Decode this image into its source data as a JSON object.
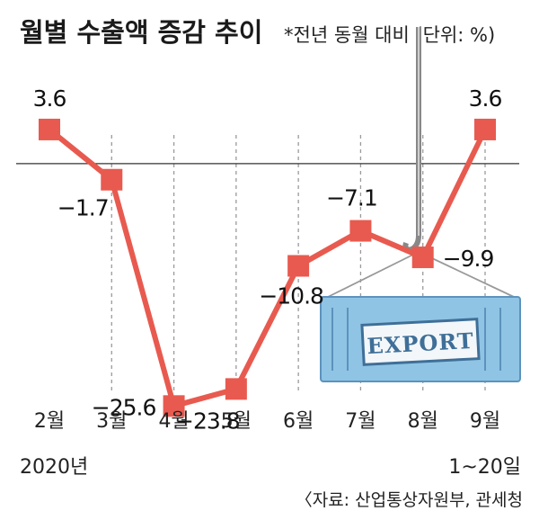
{
  "chart_data": {
    "type": "line",
    "title": "월별 수출액 증감 추이",
    "subtitle": "*전년 동월 대비 (단위: %)",
    "categories": [
      "2월",
      "3월",
      "4월",
      "5월",
      "6월",
      "7월",
      "8월",
      "9월"
    ],
    "values": [
      3.6,
      -1.7,
      -25.6,
      -23.8,
      -10.8,
      -7.1,
      -9.9,
      3.6
    ],
    "data_labels": [
      "3.6",
      "−1.7",
      "−25.6",
      "−23.8",
      "−10.8",
      "−7.1",
      "−9.9",
      "3.6"
    ],
    "tick_sublabels": {
      "first": "2020년",
      "last": "1~20일"
    },
    "ylim": [
      -28.8,
      9.2
    ],
    "baseline": 0,
    "grid": "vertical-dashed",
    "legend": "none",
    "colors": {
      "line": "#e85a4f",
      "marker": "#e85a4f",
      "container": "#8fc4e4"
    },
    "illustration": {
      "stamp_text": "EXPORT"
    },
    "source": "〈자료: 산업통상자원부, 관세청"
  }
}
